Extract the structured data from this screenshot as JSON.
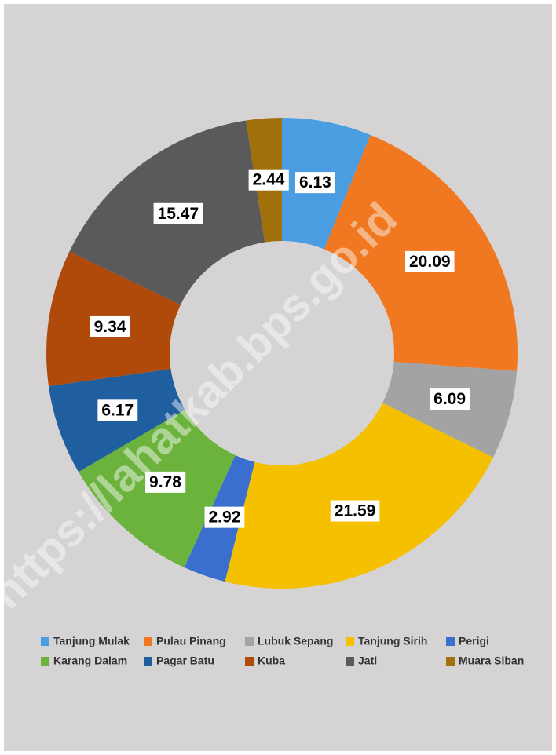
{
  "chart_data": {
    "type": "donut",
    "categories": [
      "Tanjung Mulak",
      "Pulau Pinang",
      "Lubuk Sepang",
      "Tanjung Sirih",
      "Perigi",
      "Karang Dalam",
      "Pagar Batu",
      "Kuba",
      "Jati",
      "Muara Siban"
    ],
    "values": [
      6.13,
      20.09,
      6.09,
      21.59,
      2.92,
      9.78,
      6.17,
      9.34,
      15.47,
      2.44
    ],
    "colors": [
      "#4a9de0",
      "#f07820",
      "#a3a3a3",
      "#f5c000",
      "#3a6fd0",
      "#6cb33e",
      "#1f5fa0",
      "#b04a0a",
      "#5a5a5a",
      "#a0700a"
    ],
    "watermark": "https://lahatkab.bps.go.id"
  }
}
